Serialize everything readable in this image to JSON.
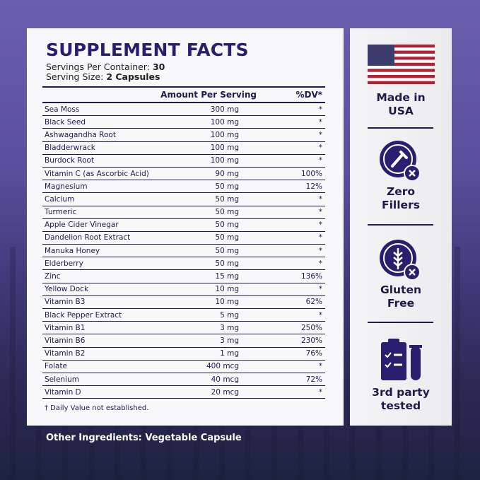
{
  "title": "SUPPLEMENT FACTS",
  "servings_label": "Servings Per Container:",
  "servings_value": "30",
  "size_label": "Serving Size:",
  "size_value": "2 Capsules",
  "header": {
    "amount": "Amount Per Serving",
    "dv": "%DV*"
  },
  "rows": [
    {
      "name": "Sea Moss",
      "amount": "300 mg",
      "dv": "*"
    },
    {
      "name": "Black Seed",
      "amount": "100 mg",
      "dv": "*"
    },
    {
      "name": "Ashwagandha Root",
      "amount": "100 mg",
      "dv": "*"
    },
    {
      "name": "Bladderwrack",
      "amount": "100 mg",
      "dv": "*"
    },
    {
      "name": "Burdock Root",
      "amount": "100 mg",
      "dv": "*"
    },
    {
      "name": "Vitamin C (as Ascorbic Acid)",
      "amount": "90 mg",
      "dv": "100%"
    },
    {
      "name": "Magnesium",
      "amount": "50 mg",
      "dv": "12%"
    },
    {
      "name": "Calcium",
      "amount": "50 mg",
      "dv": "*"
    },
    {
      "name": "Turmeric",
      "amount": "50 mg",
      "dv": "*"
    },
    {
      "name": "Apple Cider Vinegar",
      "amount": "50 mg",
      "dv": "*"
    },
    {
      "name": "Dandelion Root Extract",
      "amount": "50 mg",
      "dv": "*"
    },
    {
      "name": "Manuka Honey",
      "amount": "50 mg",
      "dv": "*"
    },
    {
      "name": "Elderberry",
      "amount": "50 mg",
      "dv": "*"
    },
    {
      "name": "Zinc",
      "amount": "15 mg",
      "dv": "136%"
    },
    {
      "name": "Yellow Dock",
      "amount": "10 mg",
      "dv": "*"
    },
    {
      "name": "Vitamin B3",
      "amount": "10 mg",
      "dv": "62%"
    },
    {
      "name": "Black Pepper Extract",
      "amount": "5 mg",
      "dv": "*"
    },
    {
      "name": "Vitamin B1",
      "amount": "3 mg",
      "dv": "250%"
    },
    {
      "name": "Vitamin B6",
      "amount": "3 mg",
      "dv": "230%"
    },
    {
      "name": "Vitamin B2",
      "amount": "1 mg",
      "dv": "76%"
    },
    {
      "name": "Folate",
      "amount": "400 mcg",
      "dv": "*"
    },
    {
      "name": "Selenium",
      "amount": "40 mcg",
      "dv": "72%"
    },
    {
      "name": "Vitamin D",
      "amount": "20 mcg",
      "dv": "*"
    }
  ],
  "footnote": "† Daily Value not established.",
  "other_ingredients": "Other Ingredients: Vegetable Capsule",
  "badges": [
    {
      "line1": "Made in",
      "line2": "USA",
      "icon": "usa-flag-icon"
    },
    {
      "line1": "Zero",
      "line2": "Fillers",
      "icon": "dropper-no-icon"
    },
    {
      "line1": "Gluten",
      "line2": "Free",
      "icon": "wheat-no-icon"
    },
    {
      "line1": "3rd party",
      "line2": "tested",
      "icon": "clipboard-test-tube-icon"
    }
  ],
  "colors": {
    "navy": "#2a1e6e",
    "flag_red": "#b22234",
    "flag_blue": "#3c3b6e"
  }
}
